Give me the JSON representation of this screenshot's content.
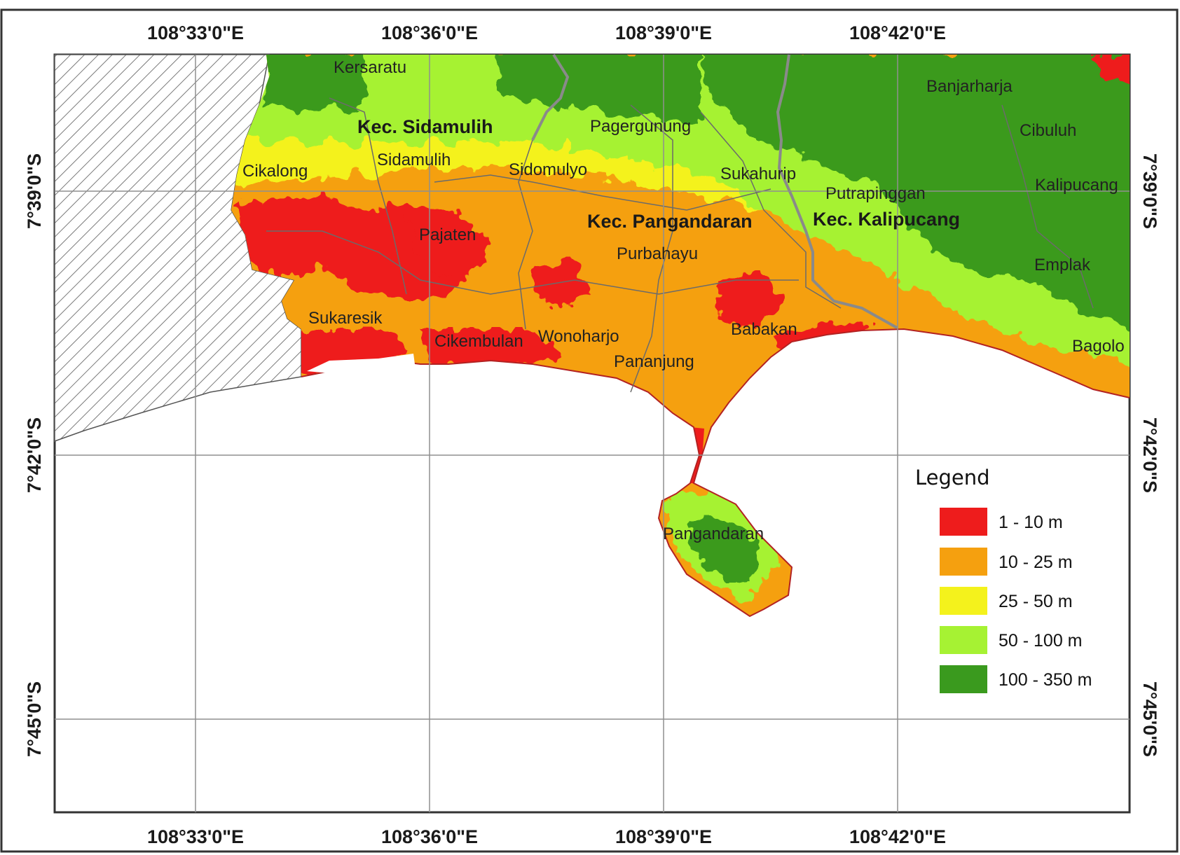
{
  "map": {
    "longitude_labels": [
      "108°33'0\"E",
      "108°36'0\"E",
      "108°39'0\"E",
      "108°42'0\"E"
    ],
    "latitude_labels": [
      "7°39'0\"S",
      "7°42'0\"S",
      "7°45'0\"S"
    ],
    "districts": [
      "Kec. Sidamulih",
      "Kec. Pangandaran",
      "Kec. Kalipucang"
    ],
    "villages": [
      "Kersaratu",
      "Banjarharja",
      "Cibuluh",
      "Pagergunung",
      "Cikalong",
      "Sidamulih",
      "Sidomulyo",
      "Sukahurip",
      "Putrapinggan",
      "Kalipucang",
      "Pajaten",
      "Purbahayu",
      "Emplak",
      "Sukaresik",
      "Babakan",
      "Cikembulan",
      "Wonoharjo",
      "Bagolo",
      "Pananjung",
      "Pangandaran"
    ]
  },
  "legend": {
    "title": "Legend",
    "items": [
      {
        "label": "1 - 10 m",
        "color": "#ee1c1c"
      },
      {
        "label": "10 - 25 m",
        "color": "#f5a00f"
      },
      {
        "label": "25 - 50 m",
        "color": "#f4f21c"
      },
      {
        "label": "50 - 100 m",
        "color": "#a6f233"
      },
      {
        "label": "100 - 350 m",
        "color": "#3a9a1e"
      }
    ]
  },
  "colors": {
    "frame": "#333333",
    "grid": "#9a9a9a",
    "hatch": "#777777",
    "district_boundary": "#6b6b6b"
  }
}
